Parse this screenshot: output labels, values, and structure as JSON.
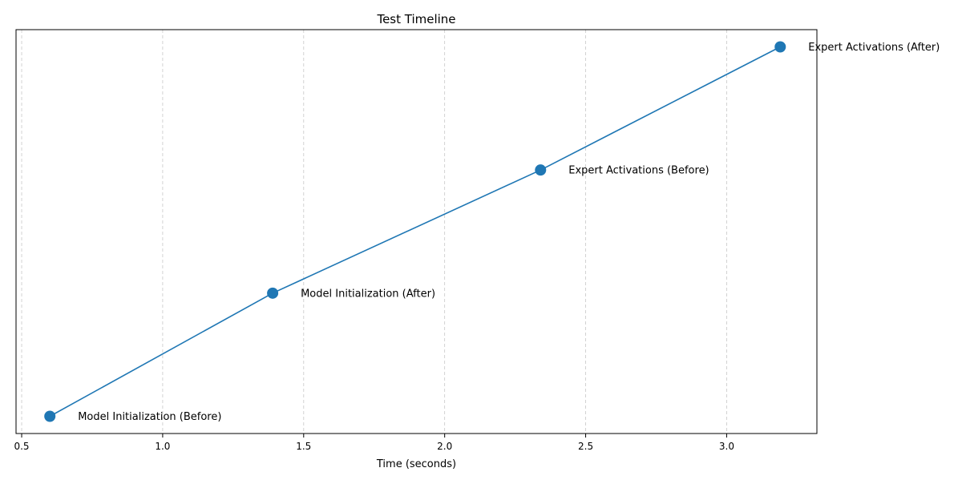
{
  "chart_data": {
    "type": "line",
    "title": "Test Timeline",
    "xlabel": "Time (seconds)",
    "ylabel": "",
    "xlim": [
      0.48,
      3.32
    ],
    "ylim": [
      -0.14,
      3.14
    ],
    "xticks": [
      0.5,
      1.0,
      1.5,
      2.0,
      2.5,
      3.0
    ],
    "xtick_labels": [
      "0.5",
      "1.0",
      "1.5",
      "2.0",
      "2.5",
      "3.0"
    ],
    "grid": {
      "x": true,
      "y": false,
      "style": "dashed"
    },
    "series": [
      {
        "color": "#1f77b4",
        "marker": "circle",
        "points": [
          {
            "x": 0.6,
            "y": 0,
            "label": "Model Initialization (Before)"
          },
          {
            "x": 1.39,
            "y": 1,
            "label": "Model Initialization (After)"
          },
          {
            "x": 2.34,
            "y": 2,
            "label": "Expert Activations (Before)"
          },
          {
            "x": 3.19,
            "y": 3,
            "label": "Expert Activations (After)"
          }
        ]
      }
    ]
  }
}
